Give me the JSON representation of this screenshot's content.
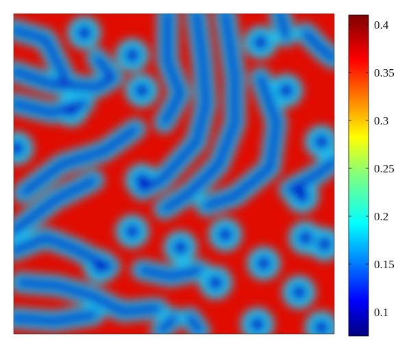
{
  "chart_data": {
    "type": "heatmap",
    "title": "",
    "xlabel": "",
    "ylabel": "",
    "grid": false,
    "axes_ticks": false,
    "colormap": "jet",
    "color_range": [
      0.075,
      0.41
    ],
    "colorbar": {
      "ticks": [
        0.1,
        0.15,
        0.2,
        0.25,
        0.3,
        0.35,
        0.4
      ],
      "tick_labels": [
        "0.1",
        "0.15",
        "0.2",
        "0.25",
        "0.3",
        "0.35",
        "0.4"
      ]
    },
    "pattern": {
      "description_value_low": 0.08,
      "description_value_high": 0.41,
      "features": {
        "spots": [
          {
            "x": 0.22,
            "y": 0.06
          },
          {
            "x": 0.37,
            "y": 0.13
          },
          {
            "x": 0.4,
            "y": 0.24
          },
          {
            "x": 0.18,
            "y": 0.3
          },
          {
            "x": 0.01,
            "y": 0.42
          },
          {
            "x": 0.4,
            "y": 0.52
          },
          {
            "x": 0.85,
            "y": 0.24
          },
          {
            "x": 0.77,
            "y": 0.09
          },
          {
            "x": 0.96,
            "y": 0.4
          },
          {
            "x": 0.9,
            "y": 0.57
          },
          {
            "x": 0.66,
            "y": 0.69
          },
          {
            "x": 0.78,
            "y": 0.78
          },
          {
            "x": 0.91,
            "y": 0.7
          },
          {
            "x": 0.63,
            "y": 0.84
          },
          {
            "x": 0.89,
            "y": 0.87
          },
          {
            "x": 0.96,
            "y": 0.98
          },
          {
            "x": 0.76,
            "y": 0.97
          },
          {
            "x": 0.52,
            "y": 0.73
          },
          {
            "x": 0.37,
            "y": 0.68
          },
          {
            "x": 0.27,
            "y": 0.79
          },
          {
            "x": 0.97,
            "y": 0.72
          }
        ],
        "stripes": [
          [
            [
              0.0,
              0.05
            ],
            [
              0.1,
              0.08
            ],
            [
              0.16,
              0.2
            ]
          ],
          [
            [
              0.0,
              0.18
            ],
            [
              0.12,
              0.22
            ],
            [
              0.26,
              0.23
            ],
            [
              0.31,
              0.2
            ],
            [
              0.26,
              0.14
            ]
          ],
          [
            [
              0.0,
              0.28
            ],
            [
              0.12,
              0.31
            ],
            [
              0.22,
              0.28
            ]
          ],
          [
            [
              0.03,
              0.56
            ],
            [
              0.15,
              0.47
            ],
            [
              0.28,
              0.43
            ],
            [
              0.38,
              0.36
            ]
          ],
          [
            [
              0.0,
              0.68
            ],
            [
              0.13,
              0.58
            ],
            [
              0.25,
              0.52
            ]
          ],
          [
            [
              0.0,
              0.74
            ],
            [
              0.1,
              0.7
            ],
            [
              0.18,
              0.73
            ],
            [
              0.3,
              0.79
            ]
          ],
          [
            [
              0.4,
              0.8
            ],
            [
              0.49,
              0.82
            ],
            [
              0.58,
              0.8
            ]
          ],
          [
            [
              0.02,
              0.84
            ],
            [
              0.14,
              0.85
            ],
            [
              0.24,
              0.88
            ],
            [
              0.34,
              0.93
            ],
            [
              0.45,
              0.92
            ]
          ],
          [
            [
              0.0,
              0.95
            ],
            [
              0.13,
              0.96
            ],
            [
              0.25,
              0.94
            ]
          ],
          [
            [
              0.48,
              0.0
            ],
            [
              0.48,
              0.15
            ],
            [
              0.52,
              0.25
            ],
            [
              0.47,
              0.34
            ]
          ],
          [
            [
              0.57,
              0.0
            ],
            [
              0.59,
              0.15
            ],
            [
              0.6,
              0.28
            ],
            [
              0.57,
              0.4
            ],
            [
              0.46,
              0.52
            ],
            [
              0.4,
              0.55
            ]
          ],
          [
            [
              0.66,
              0.0
            ],
            [
              0.69,
              0.2
            ],
            [
              0.69,
              0.34
            ],
            [
              0.64,
              0.47
            ],
            [
              0.55,
              0.56
            ],
            [
              0.47,
              0.61
            ]
          ],
          [
            [
              0.83,
              0.0
            ],
            [
              0.85,
              0.07
            ]
          ],
          [
            [
              0.77,
              0.2
            ],
            [
              0.82,
              0.34
            ],
            [
              0.8,
              0.48
            ],
            [
              0.69,
              0.57
            ],
            [
              0.6,
              0.6
            ]
          ],
          [
            [
              0.91,
              0.06
            ],
            [
              0.97,
              0.12
            ],
            [
              1.0,
              0.14
            ]
          ],
          [
            [
              0.86,
              0.55
            ],
            [
              0.95,
              0.5
            ],
            [
              1.0,
              0.46
            ]
          ],
          [
            [
              0.55,
              0.95
            ],
            [
              0.58,
              0.99
            ]
          ],
          [
            [
              0.46,
              0.99
            ],
            [
              0.5,
              0.95
            ]
          ]
        ]
      }
    }
  }
}
